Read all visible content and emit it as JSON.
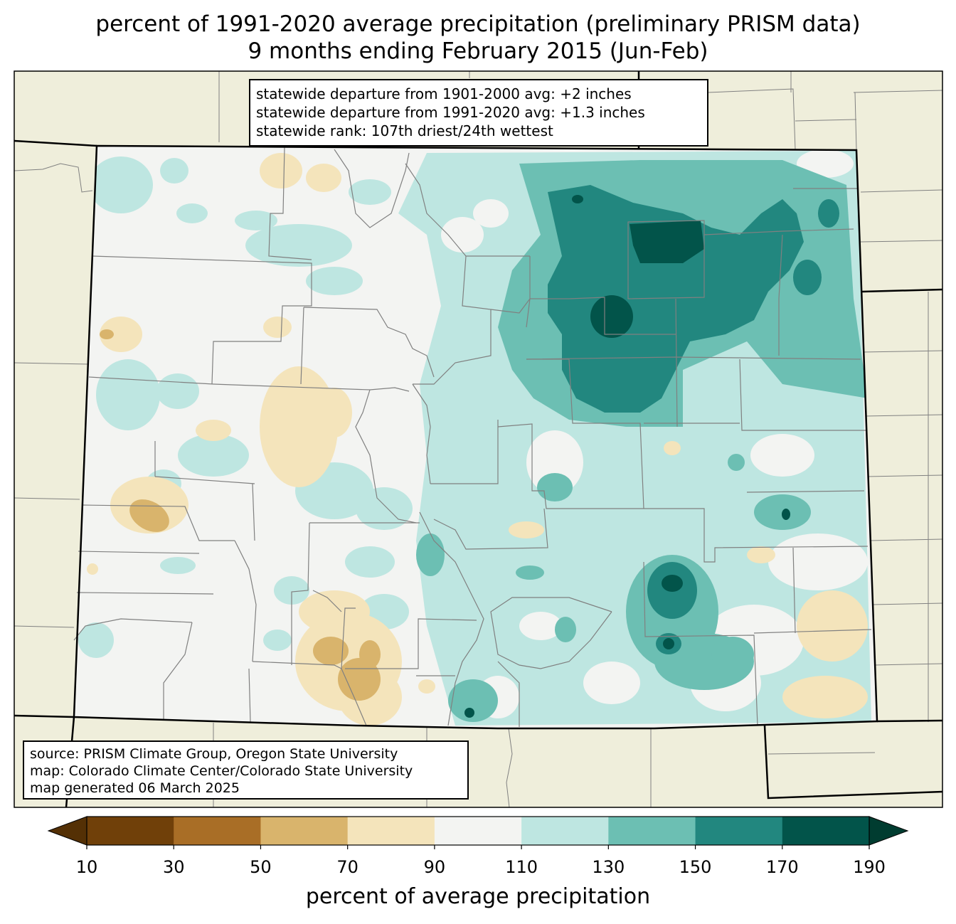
{
  "title": {
    "line1": "percent of 1991-2020 average precipitation (preliminary PRISM data)",
    "line2": "9 months ending February 2015 (Jun-Feb)"
  },
  "stats": [
    "statewide departure from 1901-2000 avg: +2 inches",
    "statewide departure from 1991-2020 avg: +1.3 inches",
    "statewide rank: 107th driest/24th wettest"
  ],
  "credits": [
    "source: PRISM Climate Group, Oregon State University",
    "map: Colorado Climate Center/Colorado State University",
    "map generated 06 March 2025"
  ],
  "colorbar": {
    "label": "percent of average precipitation",
    "ticks": [
      "10",
      "30",
      "50",
      "70",
      "90",
      "110",
      "130",
      "150",
      "170",
      "190"
    ],
    "colors": [
      "#704009",
      "#a96e26",
      "#d9b46c",
      "#f4e4bb",
      "#f3f4f2",
      "#bee6e1",
      "#6cbfb3",
      "#22877f",
      "#02544a"
    ],
    "under_color": "#543005",
    "over_color": "#003c30"
  },
  "colors": {
    "land_outside": "#efeedb",
    "state_fill": "#f3f4f2",
    "county_lines": "#808080",
    "state_border": "#000000"
  }
}
